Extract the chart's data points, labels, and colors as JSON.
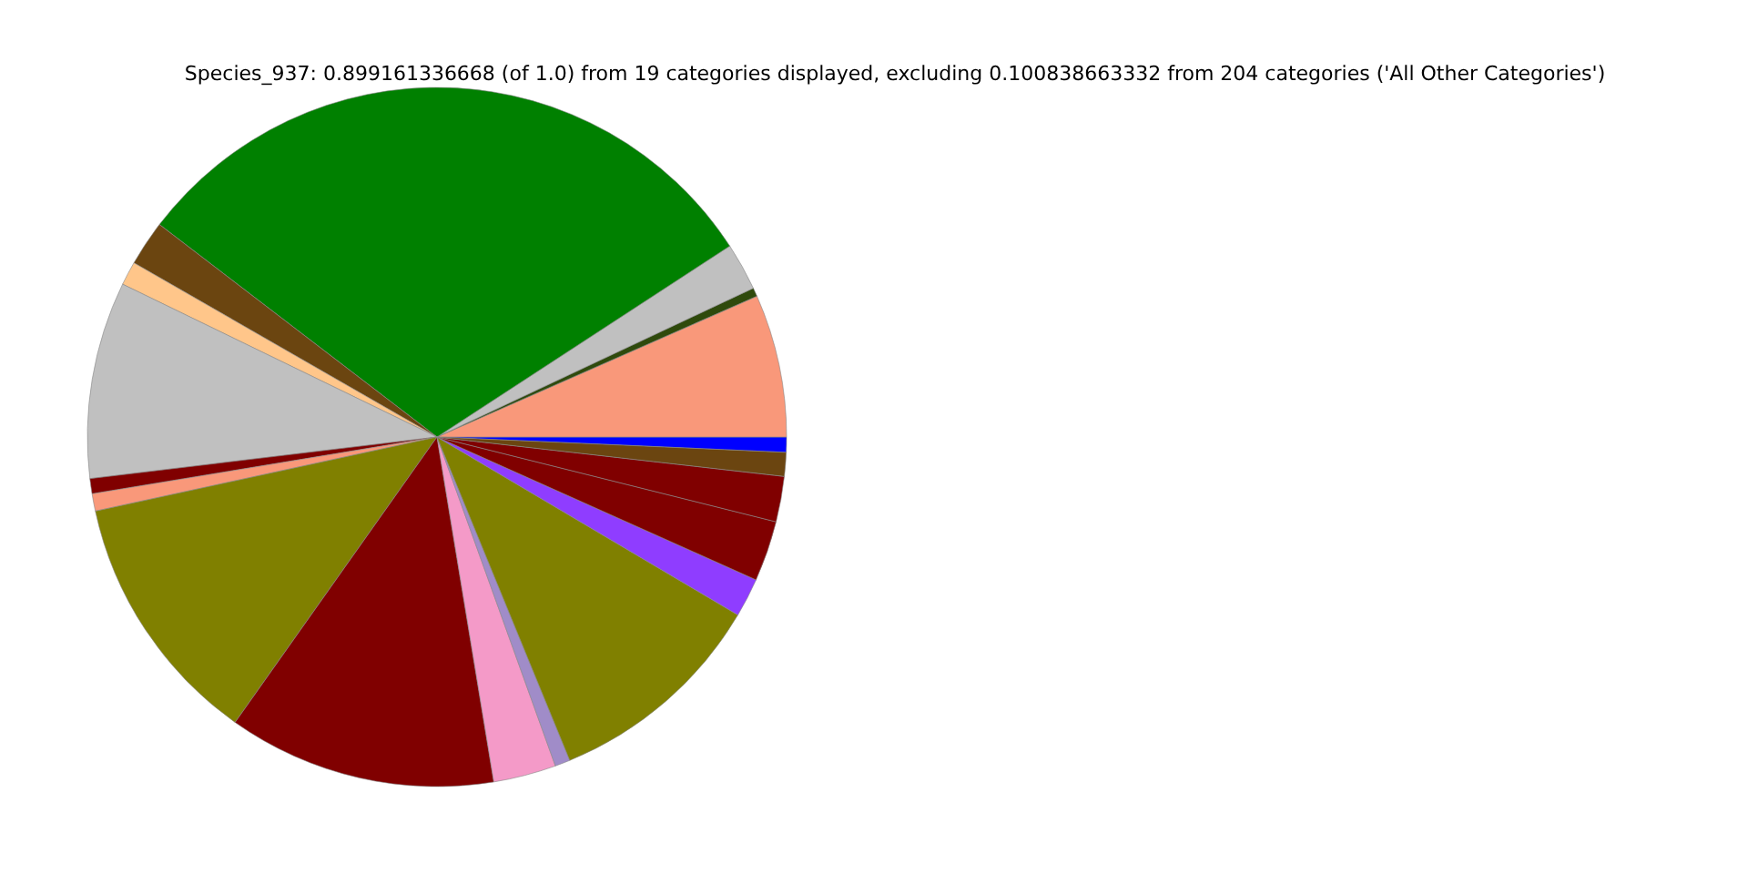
{
  "chart_data": {
    "type": "pie",
    "title": "Species_937: 0.899161336668 (of 1.0) from 19 categories displayed, excluding 0.100838663332 from 204 categories ('All Other Categories')",
    "categories": [
      null,
      null,
      null,
      null,
      null,
      null,
      null,
      null,
      null,
      null,
      null,
      null,
      null,
      null,
      null,
      null,
      null,
      null,
      null
    ],
    "values": [
      0.7,
      6.6,
      0.4,
      2.2,
      30.4,
      2.1,
      1.1,
      9.1,
      0.7,
      0.8,
      11.8,
      12.4,
      2.9,
      0.7,
      10.3,
      1.8,
      2.8,
      2.1,
      1.1
    ],
    "colors": [
      "#0000ff",
      "#f9987a",
      "#2f4a0c",
      "#c0c0c0",
      "#008000",
      "#6b4510",
      "#ffc68a",
      "#c0c0c0",
      "#800000",
      "#f9987a",
      "#808000",
      "#800000",
      "#f49ac8",
      "#a08cc8",
      "#808000",
      "#8f3dff",
      "#800000",
      "#800000",
      "#6b4510"
    ],
    "legend": false
  }
}
